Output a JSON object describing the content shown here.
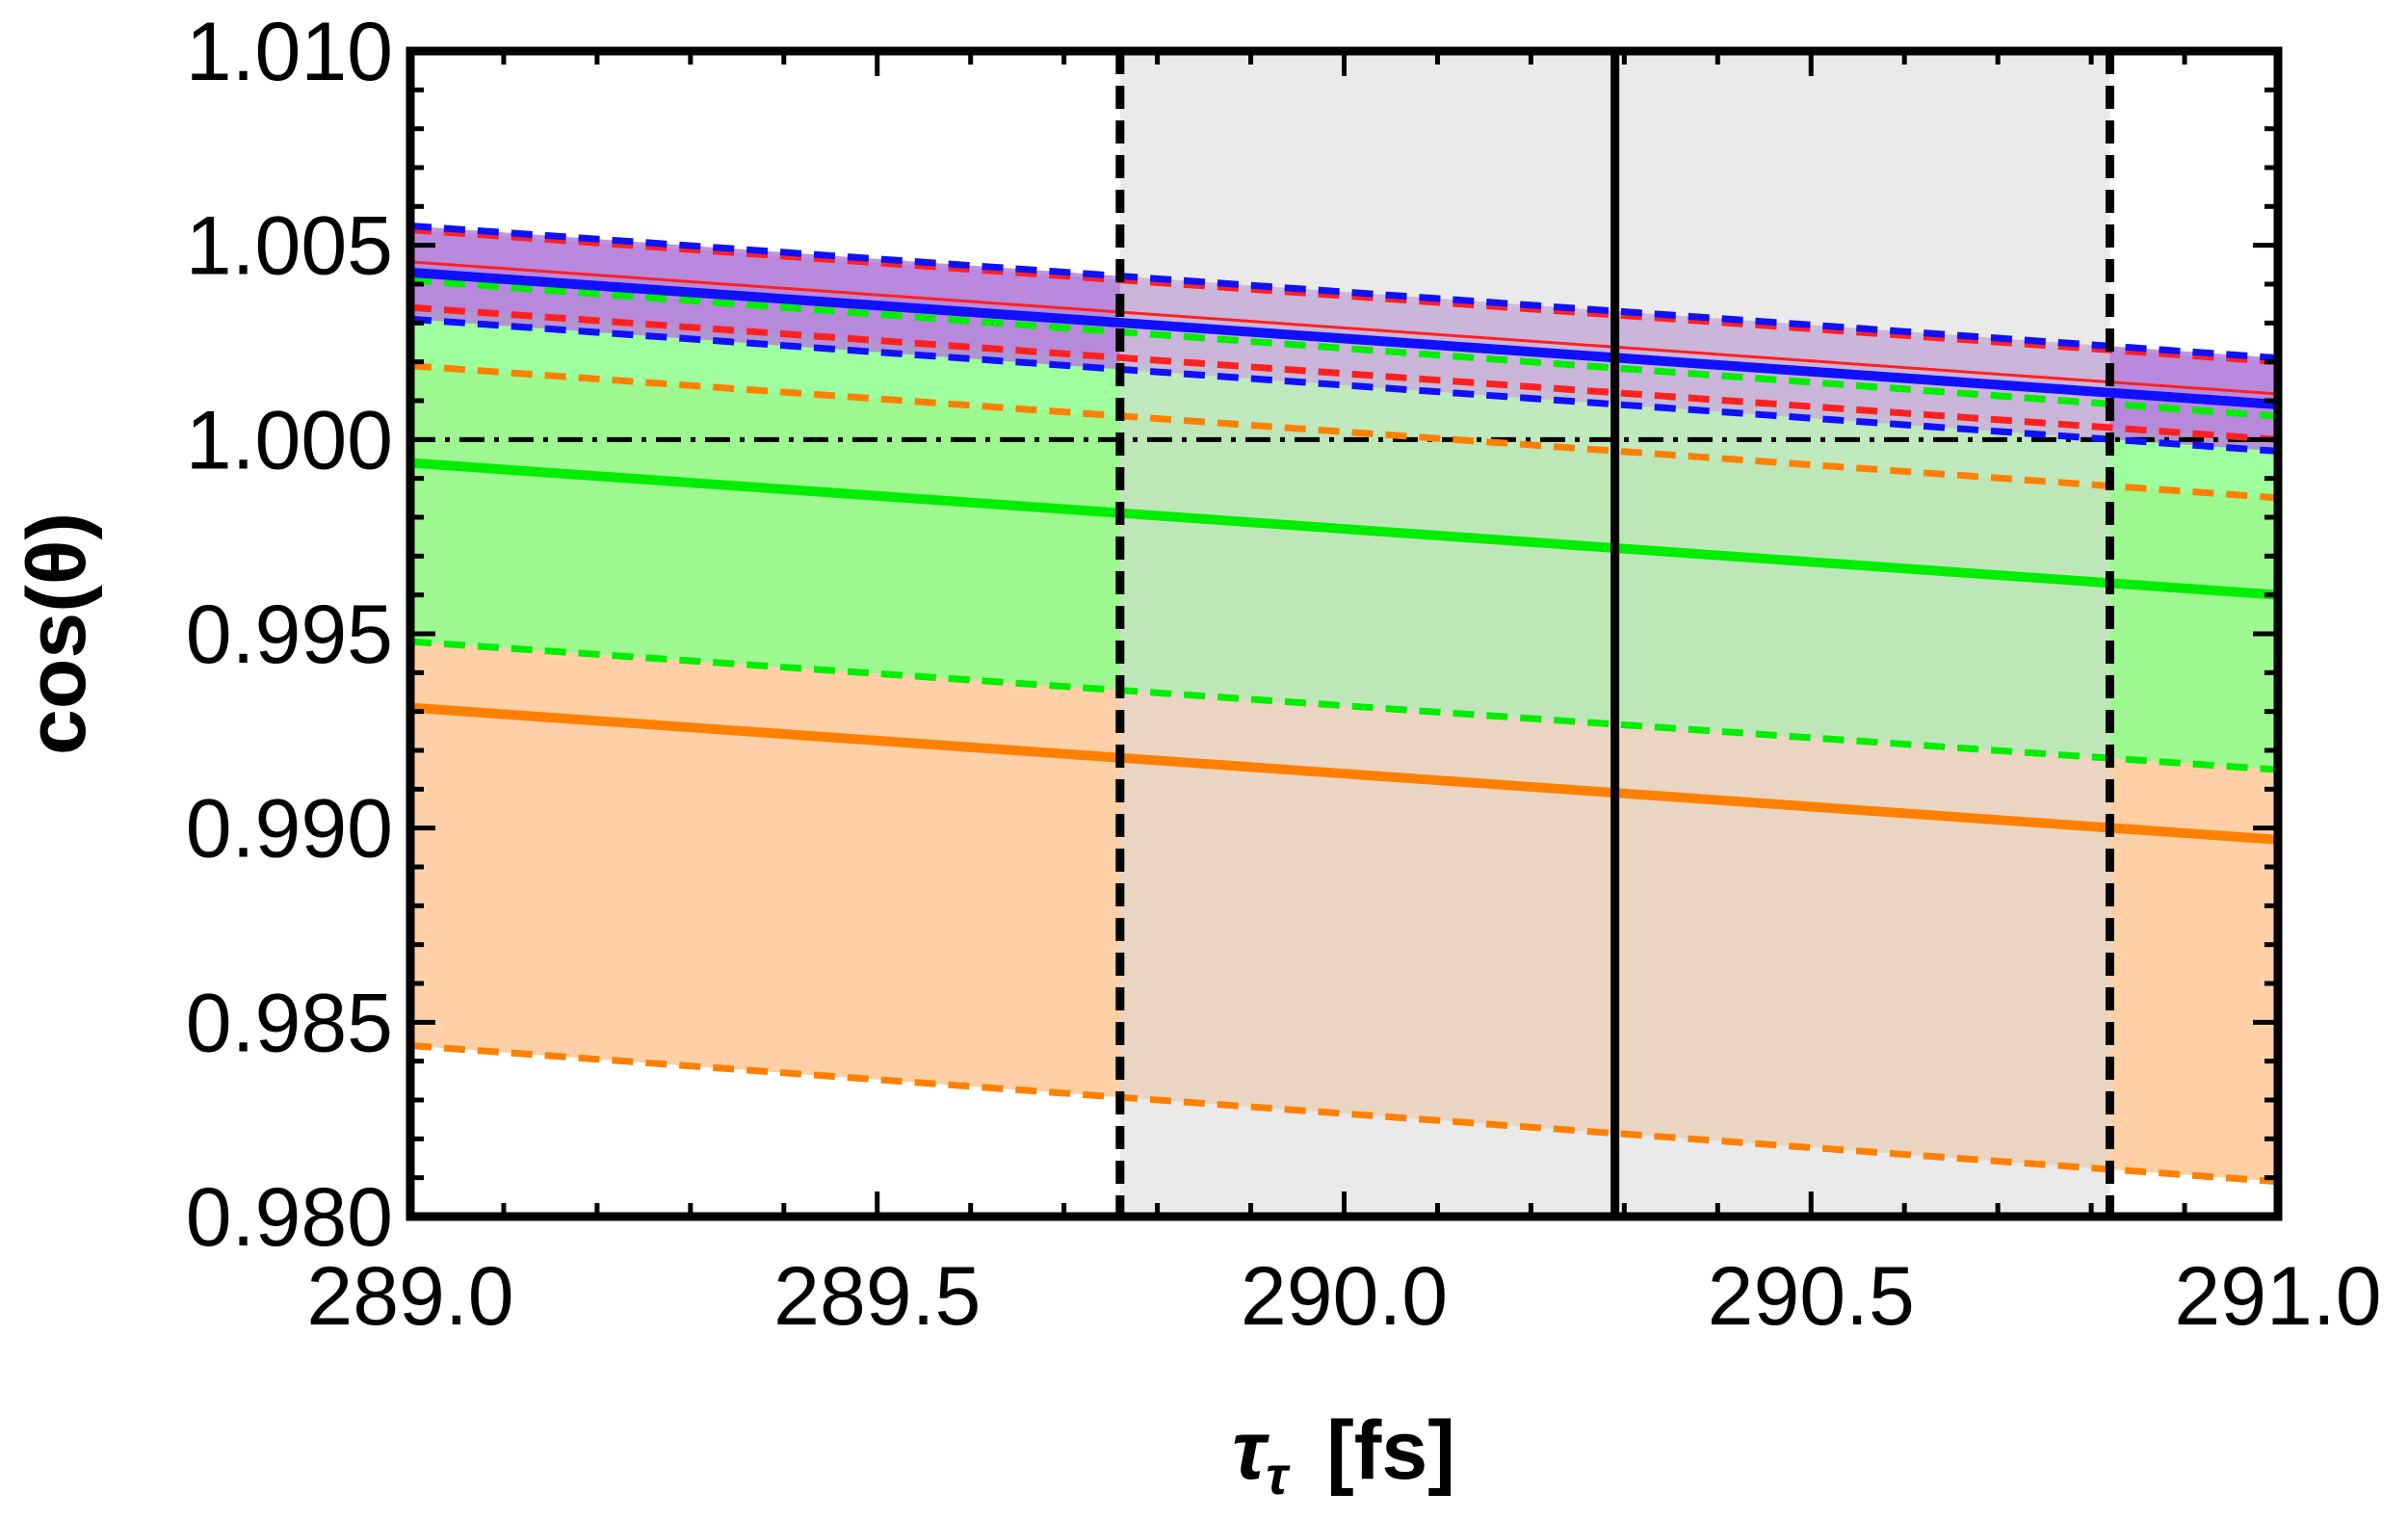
{
  "chart_data": {
    "type": "line",
    "title": "",
    "xlabel": {
      "main": "τ",
      "sub": "τ",
      "unit": "[fs]"
    },
    "ylabel": "cos(θ)",
    "xlim": [
      289.0,
      291.0
    ],
    "ylim": [
      0.98,
      1.01
    ],
    "x_ticks": [
      289.0,
      289.5,
      290.0,
      290.5,
      291.0
    ],
    "x_tick_labels": [
      "289.0",
      "289.5",
      "290.0",
      "290.5",
      "291.0"
    ],
    "y_ticks": [
      0.98,
      0.985,
      0.99,
      0.995,
      1.0,
      1.005,
      1.01
    ],
    "y_tick_labels": [
      "0.980",
      "0.985",
      "0.990",
      "0.995",
      "1.000",
      "1.005",
      "1.010"
    ],
    "reference_line": {
      "y": 1.0,
      "style": "dash-dot",
      "color": "#000000"
    },
    "measurement": {
      "central": 290.29,
      "lower": 289.76,
      "upper": 290.82,
      "band_color": "#d9d9d9",
      "line_color": "#000000"
    },
    "series": [
      {
        "name": "orange",
        "color": "#ff8000",
        "band_color": "#ffc896",
        "x": [
          289.0,
          291.0
        ],
        "central": [
          0.9931,
          0.9897
        ],
        "lower": [
          0.9844,
          0.9809
        ],
        "upper": [
          1.0019,
          0.9985
        ]
      },
      {
        "name": "green",
        "color": "#00ee00",
        "band_color": "#8cff8c",
        "x": [
          289.0,
          291.0
        ],
        "central": [
          0.9994,
          0.996
        ],
        "lower": [
          0.9948,
          0.9915
        ],
        "upper": [
          1.0041,
          1.0006
        ]
      },
      {
        "name": "red",
        "color": "#ff2020",
        "band_color": "#c8a0dc",
        "x": [
          289.0,
          291.0
        ],
        "central": [
          1.0044,
          1.001
        ],
        "lower": [
          1.0034,
          1.0
        ],
        "upper": [
          1.0054,
          1.002
        ]
      },
      {
        "name": "blue",
        "color": "#1010ff",
        "band_color": "#b482dc",
        "x": [
          289.0,
          291.0
        ],
        "central": [
          1.0043,
          1.0009
        ],
        "lower": [
          1.0031,
          0.9997
        ],
        "upper": [
          1.0055,
          1.0021
        ]
      }
    ]
  }
}
